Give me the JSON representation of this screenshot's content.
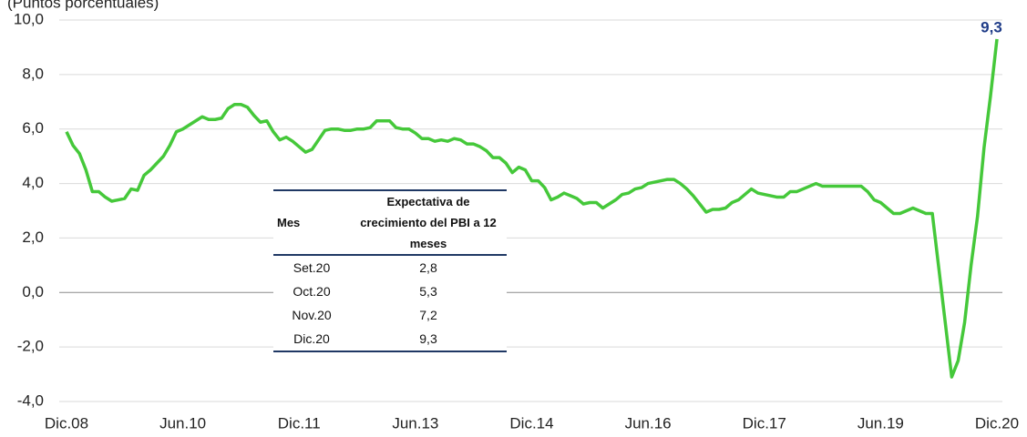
{
  "chart_data": {
    "type": "line",
    "subtitle": "(Puntos porcentuales)",
    "categories": [
      "Dic.08",
      null,
      null,
      null,
      null,
      null,
      null,
      null,
      null,
      null,
      null,
      null,
      null,
      null,
      null,
      null,
      null,
      null,
      "Jun.10",
      null,
      null,
      null,
      null,
      null,
      null,
      null,
      null,
      null,
      null,
      null,
      null,
      null,
      null,
      null,
      null,
      null,
      "Dic.11",
      null,
      null,
      null,
      null,
      null,
      null,
      null,
      null,
      null,
      null,
      null,
      null,
      null,
      null,
      null,
      null,
      null,
      "Jun.13",
      null,
      null,
      null,
      null,
      null,
      null,
      null,
      null,
      null,
      null,
      null,
      null,
      null,
      null,
      null,
      null,
      null,
      "Dic.14",
      null,
      null,
      null,
      null,
      null,
      null,
      null,
      null,
      null,
      null,
      null,
      null,
      null,
      null,
      null,
      null,
      null,
      "Jun.16",
      null,
      null,
      null,
      null,
      null,
      null,
      null,
      null,
      null,
      null,
      null,
      null,
      null,
      null,
      null,
      null,
      null,
      "Dic.17",
      null,
      null,
      null,
      null,
      null,
      null,
      null,
      null,
      null,
      null,
      null,
      null,
      null,
      null,
      null,
      null,
      null,
      "Jun.19",
      null,
      null,
      null,
      null,
      null,
      null,
      null,
      null,
      null,
      null,
      null,
      null,
      null,
      null,
      null,
      null,
      null,
      "Dic.20"
    ],
    "series": [
      {
        "color": "#45c83a",
        "label_color": "#1f3c88",
        "values": [
          5.9,
          5.4,
          5.1,
          4.5,
          3.7,
          3.7,
          3.5,
          3.35,
          3.4,
          3.45,
          3.8,
          3.75,
          4.3,
          4.5,
          4.75,
          5.0,
          5.4,
          5.9,
          6.0,
          6.15,
          6.3,
          6.45,
          6.35,
          6.35,
          6.4,
          6.75,
          6.9,
          6.9,
          6.8,
          6.5,
          6.25,
          6.3,
          5.9,
          5.6,
          5.7,
          5.55,
          5.35,
          5.15,
          5.25,
          5.6,
          5.95,
          6.0,
          6.0,
          5.95,
          5.95,
          6.0,
          6.0,
          6.05,
          6.3,
          6.3,
          6.3,
          6.05,
          6.0,
          6.0,
          5.85,
          5.65,
          5.65,
          5.55,
          5.6,
          5.55,
          5.65,
          5.6,
          5.45,
          5.45,
          5.35,
          5.2,
          4.95,
          4.95,
          4.75,
          4.4,
          4.6,
          4.5,
          4.1,
          4.1,
          3.85,
          3.4,
          3.5,
          3.65,
          3.55,
          3.45,
          3.25,
          3.3,
          3.3,
          3.1,
          3.25,
          3.4,
          3.6,
          3.65,
          3.8,
          3.85,
          4.0,
          4.05,
          4.1,
          4.15,
          4.15,
          4.0,
          3.8,
          3.55,
          3.25,
          2.95,
          3.05,
          3.05,
          3.1,
          3.3,
          3.4,
          3.6,
          3.8,
          3.65,
          3.6,
          3.55,
          3.5,
          3.5,
          3.7,
          3.7,
          3.8,
          3.9,
          4.0,
          3.9,
          3.9,
          3.9,
          3.9,
          3.9,
          3.9,
          3.9,
          3.7,
          3.4,
          3.3,
          3.1,
          2.9,
          2.9,
          3.0,
          3.1,
          3.0,
          2.9,
          2.9,
          0.9,
          -1.1,
          -3.1,
          -2.5,
          -1.1,
          1.0,
          2.8,
          5.3,
          7.2,
          9.3
        ],
        "value_labels": [
          null,
          null,
          null,
          null,
          null,
          null,
          null,
          null,
          null,
          null,
          null,
          null,
          null,
          null,
          null,
          null,
          null,
          null,
          null,
          null,
          null,
          null,
          null,
          null,
          null,
          null,
          null,
          null,
          null,
          null,
          null,
          null,
          null,
          null,
          null,
          null,
          null,
          null,
          null,
          null,
          null,
          null,
          null,
          null,
          null,
          null,
          null,
          null,
          null,
          null,
          null,
          null,
          null,
          null,
          null,
          null,
          null,
          null,
          null,
          null,
          null,
          null,
          null,
          null,
          null,
          null,
          null,
          null,
          null,
          null,
          null,
          null,
          null,
          null,
          null,
          null,
          null,
          null,
          null,
          null,
          null,
          null,
          null,
          null,
          null,
          null,
          null,
          null,
          null,
          null,
          null,
          null,
          null,
          null,
          null,
          null,
          null,
          null,
          null,
          null,
          null,
          null,
          null,
          null,
          null,
          null,
          null,
          null,
          null,
          null,
          null,
          null,
          null,
          null,
          null,
          null,
          null,
          null,
          null,
          null,
          null,
          null,
          null,
          null,
          null,
          null,
          null,
          null,
          null,
          null,
          null,
          null,
          null,
          null,
          null,
          null,
          null,
          null,
          null,
          null,
          null,
          null,
          null,
          null,
          "9,3"
        ]
      }
    ],
    "ylim": [
      -4,
      10
    ],
    "yticks": [
      {
        "value": -4,
        "label": "-4,0"
      },
      {
        "value": -2,
        "label": "-2,0"
      },
      {
        "value": 0,
        "label": "0,0"
      },
      {
        "value": 2,
        "label": "2,0"
      },
      {
        "value": 4,
        "label": "4,0"
      },
      {
        "value": 6,
        "label": "6,0"
      },
      {
        "value": 8,
        "label": "8,0"
      },
      {
        "value": 10,
        "label": "10,0"
      }
    ],
    "grid": true
  },
  "table": {
    "columns": [
      "Mes",
      "Expectativa de crecimiento del PBI a 12 meses"
    ],
    "rows": [
      [
        "Set.20",
        "2,8"
      ],
      [
        "Oct.20",
        "5,3"
      ],
      [
        "Nov.20",
        "7,2"
      ],
      [
        "Dic.20",
        "9,3"
      ]
    ]
  }
}
